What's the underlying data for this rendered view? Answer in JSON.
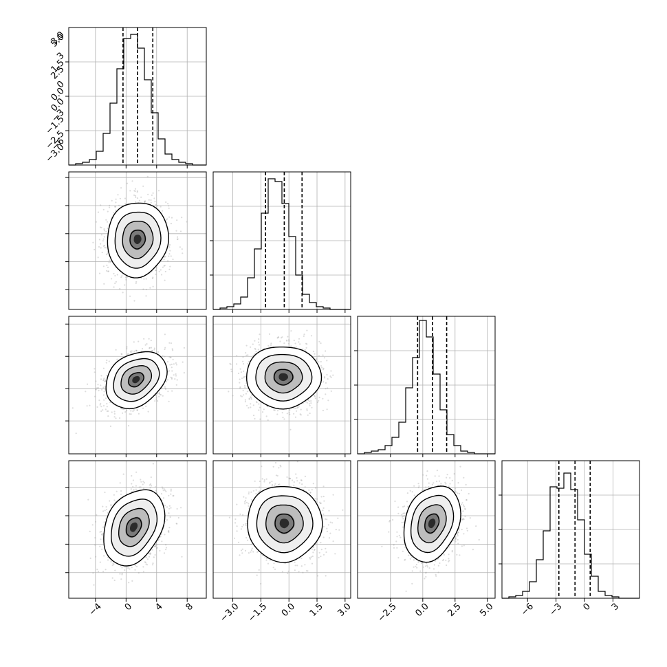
{
  "chart_data": {
    "type": "corner",
    "grid": true,
    "parameters": [
      {
        "range": [
          -7.5,
          10.5
        ],
        "ticks": [
          -4,
          0,
          4,
          8
        ],
        "tick_labels": [
          "−4",
          "0",
          "4",
          "8"
        ],
        "quantiles": [
          -0.4,
          1.5,
          3.5
        ]
      },
      {
        "range": [
          -4.05,
          3.3
        ],
        "ticks": [
          -3.0,
          -1.5,
          0.0,
          1.5,
          3.0
        ],
        "tick_labels": [
          "−3.0",
          "−1.5",
          "0.0",
          "1.5",
          "3.0"
        ],
        "quantiles": [
          -1.25,
          -0.25,
          0.7
        ]
      },
      {
        "range": [
          -5.05,
          5.6
        ],
        "ticks": [
          -2.5,
          0.0,
          2.5,
          5.0
        ],
        "tick_labels": [
          "−2.5",
          "0.0",
          "2.5",
          "5.0"
        ],
        "quantiles": [
          -0.4,
          0.75,
          1.85
        ]
      },
      {
        "range": [
          -8.7,
          5.8
        ],
        "ticks": [
          -6,
          -3,
          0,
          3
        ],
        "tick_labels": [
          "−6",
          "−3",
          "0",
          "3"
        ],
        "quantiles": [
          -2.7,
          -1.0,
          0.6
        ]
      }
    ],
    "histograms": [
      {
        "param": 0,
        "edges_start": -7.5,
        "bin_width": 0.9,
        "counts": [
          0,
          1,
          2,
          4,
          10,
          23,
          45,
          70,
          92,
          95,
          85,
          62,
          38,
          19,
          8,
          4,
          2,
          1,
          0,
          0
        ],
        "ymax": 100
      },
      {
        "param": 1,
        "edges_start": -4.05,
        "bin_width": 0.3675,
        "counts": [
          0,
          1,
          2,
          4,
          9,
          23,
          44,
          70,
          95,
          93,
          77,
          53,
          25,
          11,
          5,
          2,
          1,
          0,
          0,
          0
        ],
        "ymax": 100
      },
      {
        "param": 2,
        "edges_start": -5.05,
        "bin_width": 0.5325,
        "counts": [
          0,
          1,
          2,
          3,
          6,
          12,
          23,
          48,
          70,
          97,
          85,
          58,
          32,
          14,
          6,
          2,
          1,
          0,
          0,
          0
        ],
        "ymax": 100
      },
      {
        "param": 3,
        "edges_start": -8.7,
        "bin_width": 0.725,
        "counts": [
          0,
          1,
          2,
          5,
          12,
          28,
          49,
          81,
          80,
          91,
          79,
          57,
          32,
          16,
          5,
          2,
          1,
          0,
          0,
          0
        ],
        "ymax": 100
      }
    ],
    "pairs": [
      {
        "x": 0,
        "y": 1,
        "center": [
          1.5,
          -0.3
        ],
        "sigma": [
          2.0,
          1.0
        ],
        "rho": 0.05
      },
      {
        "x": 0,
        "y": 2,
        "center": [
          1.3,
          0.7
        ],
        "sigma": [
          2.0,
          1.1
        ],
        "rho": 0.28
      },
      {
        "x": 1,
        "y": 2,
        "center": [
          -0.3,
          0.9
        ],
        "sigma": [
          1.0,
          1.2
        ],
        "rho": 0.0
      },
      {
        "x": 0,
        "y": 3,
        "center": [
          1.0,
          -1.2
        ],
        "sigma": [
          2.0,
          2.0
        ],
        "rho": 0.3
      },
      {
        "x": 1,
        "y": 3,
        "center": [
          -0.25,
          -0.8
        ],
        "sigma": [
          1.0,
          2.0
        ],
        "rho": 0.0
      },
      {
        "x": 2,
        "y": 3,
        "center": [
          0.7,
          -0.8
        ],
        "sigma": [
          1.1,
          2.0
        ],
        "rho": 0.25
      }
    ]
  }
}
